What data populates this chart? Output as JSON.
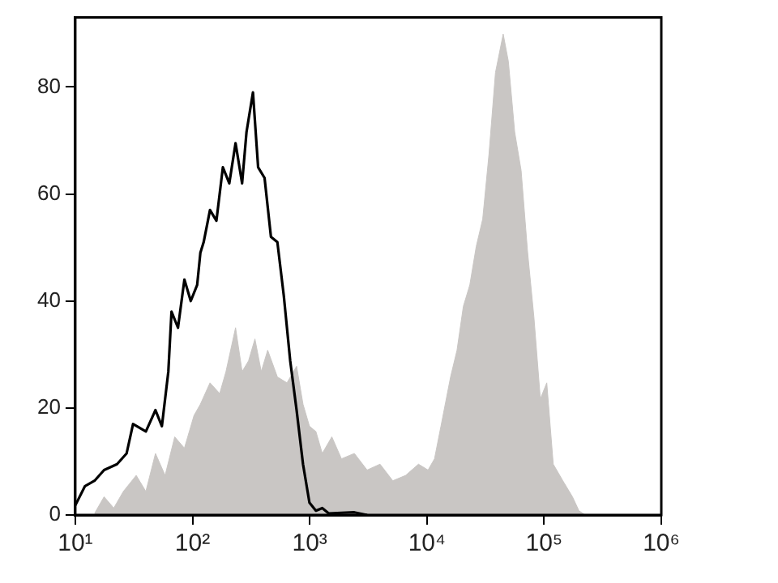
{
  "chart_data": {
    "type": "line",
    "log": "x",
    "grid": false,
    "legend": false,
    "xlim": [
      10,
      1000000
    ],
    "xticks": [
      {
        "value": 10,
        "label": "10¹"
      },
      {
        "value": 100,
        "label": "10²"
      },
      {
        "value": 1000,
        "label": "10³"
      },
      {
        "value": 10000,
        "label": "10⁴"
      },
      {
        "value": 100000,
        "label": "10⁵"
      },
      {
        "value": 1000000,
        "label": "10⁶"
      }
    ],
    "ylim": [
      0,
      93
    ],
    "yticks": [
      0,
      20,
      40,
      60,
      80
    ],
    "series": [
      {
        "type": "area",
        "color": "#c9c6c4",
        "x": [
          14.6,
          17.6,
          21.3,
          25.7,
          33.1,
          40,
          48.3,
          58.4,
          70.5,
          85.3,
          103,
          116.7,
          141,
          170.6,
          193,
          233,
          265,
          300.6,
          341,
          386,
          438,
          530,
          640,
          773,
          877,
          995,
          1130,
          1280,
          1545,
          1866,
          2404,
          3090,
          3981,
          5117,
          6590,
          8472,
          10230,
          11610,
          13180,
          15920,
          18070,
          20470,
          23230,
          26370,
          29920,
          33880,
          38460,
          44770,
          49550,
          56100,
          63680,
          72270,
          81850,
          92900,
          105400,
          119700,
          144500,
          174600,
          198200,
          224400
        ],
        "values": [
          0.3,
          3.4,
          1.3,
          4.4,
          7.4,
          4.4,
          11.5,
          7.4,
          14.6,
          12.5,
          18.6,
          20.7,
          24.7,
          22.7,
          26.8,
          35,
          26.8,
          28.8,
          32.9,
          26.8,
          30.8,
          25.8,
          24.7,
          27.8,
          20.7,
          16.6,
          15.6,
          11.5,
          14.6,
          10.5,
          11.5,
          8.4,
          9.5,
          6.4,
          7.4,
          9.5,
          8.4,
          10.5,
          16.6,
          25.8,
          30.8,
          39,
          43,
          50.2,
          55.3,
          67.5,
          82.7,
          89.9,
          84.8,
          71.6,
          64.4,
          49.2,
          37,
          21.7,
          24.7,
          9.5,
          6.4,
          3.4,
          0.8,
          0
        ]
      },
      {
        "color": "#000000",
        "x": [
          10,
          12.1,
          14.6,
          17.6,
          22.7,
          27.4,
          31.1,
          40,
          48.3,
          54.8,
          62.2,
          66.2,
          75.2,
          85.3,
          96.6,
          109.6,
          116.7,
          124.5,
          141,
          160,
          181.6,
          206,
          233,
          265,
          289,
          328,
          363,
          412,
          467,
          530,
          601,
          682,
          773,
          877,
          995,
          1130,
          1280,
          1452,
          2404,
          3090
        ],
        "values": [
          1.8,
          5.4,
          6.4,
          8.4,
          9.5,
          11.5,
          17,
          15.6,
          19.6,
          16.6,
          26.8,
          38,
          35,
          44,
          40,
          43,
          49,
          51,
          57,
          55,
          65,
          62,
          69.5,
          62,
          71.6,
          79,
          65,
          63,
          52,
          51,
          41,
          28.8,
          19.6,
          9.5,
          2.3,
          0.8,
          1.3,
          0.3,
          0.5,
          0
        ]
      }
    ]
  }
}
